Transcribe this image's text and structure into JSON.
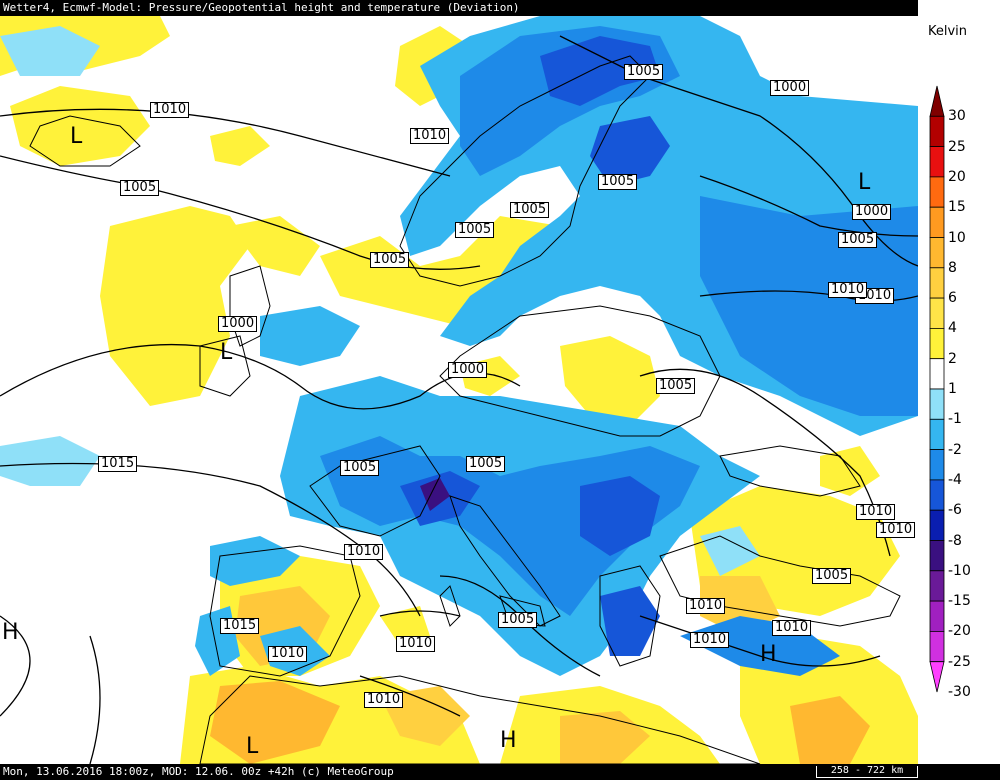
{
  "header": {
    "title": "Wetter4, Ecmwf-Model: Pressure/Geopotential height and temperature (Deviation)"
  },
  "footer": {
    "info": "Mon, 13.06.2016 18:00z, MOD: 12.06. 00z +42h (c) MeteoGroup",
    "scale": "258 - 722 km"
  },
  "legend": {
    "unit": "Kelvin",
    "steps": [
      {
        "label": "30",
        "color": "#7f0000"
      },
      {
        "label": "25",
        "color": "#b20000"
      },
      {
        "label": "20",
        "color": "#e81010"
      },
      {
        "label": "15",
        "color": "#ff6a10"
      },
      {
        "label": "10",
        "color": "#ff9a20"
      },
      {
        "label": "8",
        "color": "#ffb830"
      },
      {
        "label": "6",
        "color": "#ffd040"
      },
      {
        "label": "4",
        "color": "#ffe448"
      },
      {
        "label": "2",
        "color": "#fff23a"
      },
      {
        "label": "1",
        "color": "#ffffff"
      },
      {
        "label": "-1",
        "color": "#8fe0f8"
      },
      {
        "label": "-2",
        "color": "#35b6f0"
      },
      {
        "label": "-4",
        "color": "#1e8ae8"
      },
      {
        "label": "-6",
        "color": "#1656d8"
      },
      {
        "label": "-8",
        "color": "#0a1eb0"
      },
      {
        "label": "-10",
        "color": "#3a1080"
      },
      {
        "label": "-15",
        "color": "#6a1a98"
      },
      {
        "label": "-20",
        "color": "#a020c0"
      },
      {
        "label": "-25",
        "color": "#d030e0"
      },
      {
        "label": "-30",
        "color": "#ff40ff"
      }
    ]
  },
  "isobar_labels": [
    "1010",
    "1010",
    "1005",
    "1005",
    "1010",
    "1005",
    "1005",
    "1005",
    "1000",
    "1000",
    "1005",
    "1010",
    "1000",
    "1000",
    "1005",
    "1005",
    "1005",
    "1015",
    "1010",
    "1010",
    "1010",
    "1015",
    "1010",
    "1005",
    "1005",
    "1005",
    "1010",
    "1010",
    "1010",
    "1010",
    "1010"
  ],
  "pressure_centers": [
    "L",
    "L",
    "L",
    "H",
    "H",
    "H",
    "L"
  ]
}
